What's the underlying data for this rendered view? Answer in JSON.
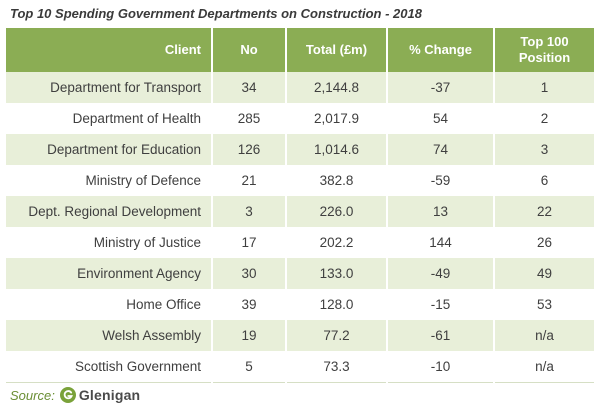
{
  "title": "Top 10 Spending Government Departments on Construction - 2018",
  "table": {
    "headers": {
      "client": "Client",
      "no": "No",
      "total": "Total (£m)",
      "change": "% Change",
      "position": "Top 100 Position"
    },
    "rows": [
      {
        "client": "Department for Transport",
        "no": "34",
        "total": "2,144.8",
        "change": "-37",
        "position": "1"
      },
      {
        "client": "Department of Health",
        "no": "285",
        "total": "2,017.9",
        "change": "54",
        "position": "2"
      },
      {
        "client": "Department for Education",
        "no": "126",
        "total": "1,014.6",
        "change": "74",
        "position": "3"
      },
      {
        "client": "Ministry of Defence",
        "no": "21",
        "total": "382.8",
        "change": "-59",
        "position": "6"
      },
      {
        "client": "Dept. Regional Development",
        "no": "3",
        "total": "226.0",
        "change": "13",
        "position": "22"
      },
      {
        "client": "Ministry of Justice",
        "no": "17",
        "total": "202.2",
        "change": "144",
        "position": "26"
      },
      {
        "client": "Environment Agency",
        "no": "30",
        "total": "133.0",
        "change": "-49",
        "position": "49"
      },
      {
        "client": "Home Office",
        "no": "39",
        "total": "128.0",
        "change": "-15",
        "position": "53"
      },
      {
        "client": "Welsh Assembly",
        "no": "19",
        "total": "77.2",
        "change": "-61",
        "position": "n/a"
      },
      {
        "client": "Scottish Government",
        "no": "5",
        "total": "73.3",
        "change": "-10",
        "position": "n/a"
      }
    ]
  },
  "source": {
    "label": "Source:",
    "logo_text": "Glenigan",
    "logo_icon": "glenigan-g-icon",
    "logo_color": "#7aa23a"
  },
  "colors": {
    "header_bg": "#8bad54",
    "row_alt_bg": "#e8efd9"
  }
}
